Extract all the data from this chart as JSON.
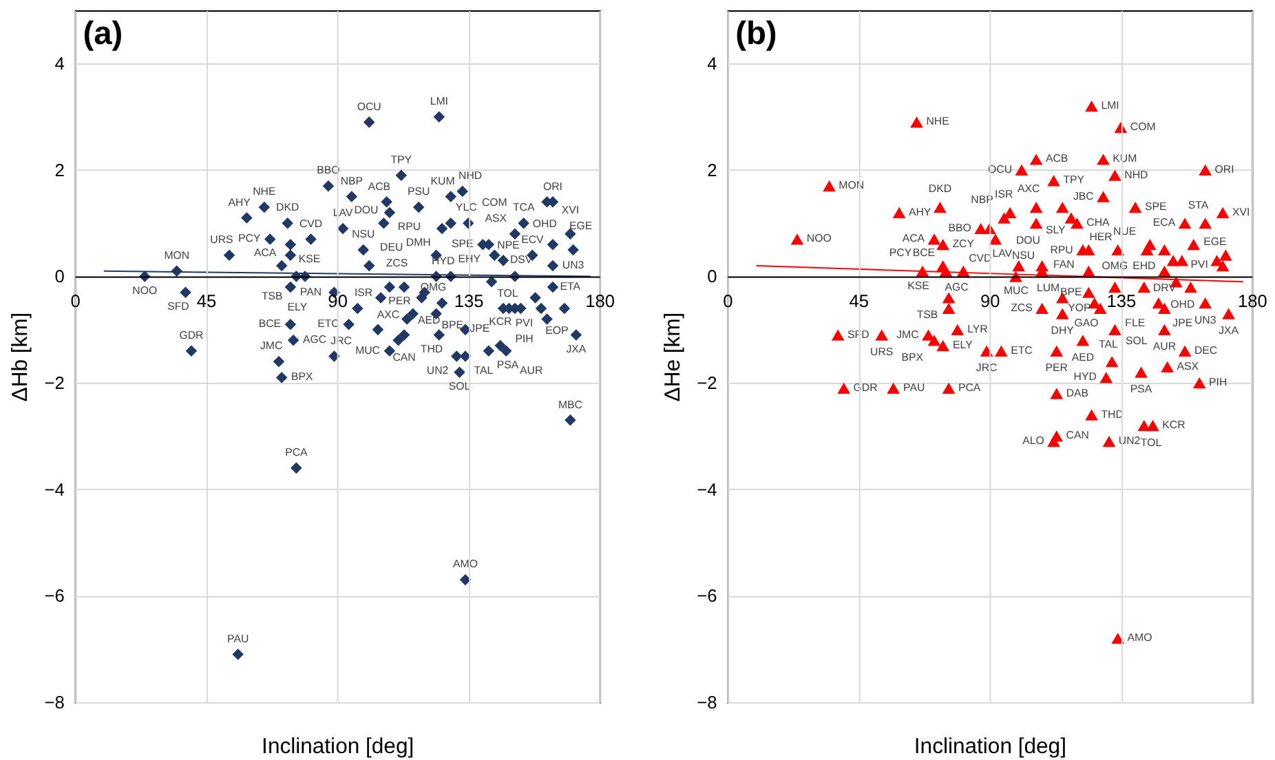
{
  "chart_data": [
    {
      "type": "scatter",
      "title": "(a)",
      "xlabel": "Inclination [deg]",
      "ylabel": "ΔHb [km]",
      "xlim": [
        0,
        180
      ],
      "ylim": [
        -8,
        5
      ],
      "xticks": [
        0,
        45,
        90,
        135,
        180
      ],
      "yticks": [
        -8,
        -6,
        -4,
        -2,
        0,
        2,
        4
      ],
      "grid": true,
      "series": [
        {
          "marker": "diamond",
          "color": "#1f3864",
          "x": [
            24,
            35,
            38,
            40,
            53,
            59,
            65,
            67,
            73,
            74,
            71,
            74,
            81,
            76,
            79,
            74,
            74,
            75,
            70,
            71,
            76,
            56,
            89,
            89,
            87,
            92,
            95,
            94,
            97,
            99,
            101,
            101,
            107,
            108,
            106,
            118,
            112,
            125,
            129,
            133,
            126,
            129,
            135,
            108,
            105,
            134,
            170,
            108,
            104,
            113,
            111,
            114,
            116,
            119,
            120,
            113,
            124,
            129,
            124,
            124,
            126,
            125,
            131,
            134,
            132,
            134,
            143,
            142,
            140,
            144,
            147,
            151,
            157,
            154,
            162,
            164,
            151,
            164,
            158,
            147,
            149,
            151,
            153,
            160,
            162,
            168,
            172,
            171,
            170,
            164,
            164,
            146,
            142,
            148
          ],
          "values": [
            0.0,
            0.1,
            -0.3,
            -1.4,
            0.4,
            1.1,
            1.3,
            0.7,
            1.0,
            0.6,
            0.2,
            0.4,
            0.7,
            0.0,
            0.0,
            -0.2,
            -0.9,
            -1.2,
            -1.6,
            -1.9,
            -3.6,
            -7.1,
            -0.3,
            -1.5,
            1.7,
            0.9,
            1.5,
            -0.9,
            -0.6,
            0.5,
            0.2,
            2.9,
            1.4,
            1.2,
            1.0,
            1.3,
            1.9,
            3.0,
            1.5,
            1.6,
            0.9,
            1.0,
            1.0,
            -0.2,
            -0.4,
            -5.7,
            -2.7,
            -1.4,
            -1.0,
            -1.1,
            -1.2,
            -0.8,
            -0.7,
            -0.4,
            -0.3,
            -0.2,
            0.0,
            0.0,
            0.4,
            -0.7,
            -0.5,
            -1.1,
            -1.5,
            -1.5,
            -1.8,
            -1.0,
            -0.1,
            0.6,
            0.6,
            0.4,
            0.3,
            0.8,
            0.4,
            1.0,
            1.4,
            1.4,
            0.0,
            -0.2,
            -0.4,
            -0.6,
            -0.6,
            -0.6,
            -0.6,
            -0.6,
            -0.8,
            -0.6,
            -1.1,
            0.5,
            0.8,
            0.6,
            0.2,
            -1.3,
            -1.4,
            -1.4
          ]
        },
        {
          "type": "line",
          "color": "#1f3864",
          "x": [
            10,
            177
          ],
          "values": [
            0.1,
            0.0
          ]
        }
      ],
      "annotations": [
        {
          "text": "NOO",
          "x": 24,
          "y": 0.0
        },
        {
          "text": "MON",
          "x": 35,
          "y": 0.1
        },
        {
          "text": "SFD",
          "x": 38,
          "y": -0.3
        },
        {
          "text": "GDR",
          "x": 40,
          "y": -1.4
        },
        {
          "text": "URS",
          "x": 53,
          "y": 0.4
        },
        {
          "text": "AHY",
          "x": 59,
          "y": 1.1
        },
        {
          "text": "NHE",
          "x": 65,
          "y": 1.3
        },
        {
          "text": "PCY",
          "x": 67,
          "y": 0.7
        },
        {
          "text": "DKD",
          "x": 73,
          "y": 1.0
        },
        {
          "text": "KSE",
          "x": 74,
          "y": 0.6
        },
        {
          "text": "ACA",
          "x": 71,
          "y": 0.2
        },
        {
          "text": "CVD",
          "x": 81,
          "y": 0.7
        },
        {
          "text": "TSB",
          "x": 76,
          "y": 0.0
        },
        {
          "text": "ELY",
          "x": 74,
          "y": -0.2
        },
        {
          "text": "BCE",
          "x": 74,
          "y": -0.9
        },
        {
          "text": "AGC",
          "x": 75,
          "y": -1.2
        },
        {
          "text": "JMC",
          "x": 70,
          "y": -1.6
        },
        {
          "text": "BPX",
          "x": 71,
          "y": -1.9
        },
        {
          "text": "PCA",
          "x": 76,
          "y": -3.6
        },
        {
          "text": "PAU",
          "x": 56,
          "y": -7.1
        },
        {
          "text": "PAN",
          "x": 89,
          "y": -0.3
        },
        {
          "text": "JRC",
          "x": 89,
          "y": -1.5
        },
        {
          "text": "BBO",
          "x": 87,
          "y": 1.7
        },
        {
          "text": "LAV",
          "x": 92,
          "y": 0.9
        },
        {
          "text": "NBP",
          "x": 95,
          "y": 1.5
        },
        {
          "text": "ETC",
          "x": 94,
          "y": -0.9
        },
        {
          "text": "ISR",
          "x": 97,
          "y": -0.6
        },
        {
          "text": "NSU",
          "x": 99,
          "y": 0.5
        },
        {
          "text": "DEU",
          "x": 101,
          "y": 0.2
        },
        {
          "text": "OCU",
          "x": 101,
          "y": 2.9
        },
        {
          "text": "ACB",
          "x": 107,
          "y": 1.4
        },
        {
          "text": "RPU",
          "x": 108,
          "y": 1.2
        },
        {
          "text": "DOU",
          "x": 106,
          "y": 1.0
        },
        {
          "text": "PSU",
          "x": 118,
          "y": 1.3
        },
        {
          "text": "TPY",
          "x": 112,
          "y": 1.9
        },
        {
          "text": "LMI",
          "x": 125,
          "y": 3.0
        },
        {
          "text": "KUM",
          "x": 129,
          "y": 1.5
        },
        {
          "text": "NHD",
          "x": 133,
          "y": 1.6
        },
        {
          "text": "YLC",
          "x": 126,
          "y": 0.9
        },
        {
          "text": "COM",
          "x": 135,
          "y": 1.0
        },
        {
          "text": "ZCS",
          "x": 108,
          "y": -0.2
        },
        {
          "text": "AXC",
          "x": 105,
          "y": -0.4
        },
        {
          "text": "AMO",
          "x": 134,
          "y": -5.7
        },
        {
          "text": "MBC",
          "x": 170,
          "y": -2.7
        },
        {
          "text": "MUC",
          "x": 108,
          "y": -1.4
        },
        {
          "text": "CAN",
          "x": 113,
          "y": -1.1
        },
        {
          "text": "PER",
          "x": 114,
          "y": -0.8
        },
        {
          "text": "AED",
          "x": 119,
          "y": -0.4
        },
        {
          "text": "HYD",
          "x": 129,
          "y": 0.0
        },
        {
          "text": "DMH",
          "x": 124,
          "y": 0.4
        },
        {
          "text": "BPE",
          "x": 124,
          "y": -0.7
        },
        {
          "text": "OMG",
          "x": 126,
          "y": -0.5
        },
        {
          "text": "THD",
          "x": 125,
          "y": -1.1
        },
        {
          "text": "UN2",
          "x": 131,
          "y": -1.5
        },
        {
          "text": "TAL",
          "x": 134,
          "y": -1.5
        },
        {
          "text": "SOL",
          "x": 132,
          "y": -1.8
        },
        {
          "text": "TOL",
          "x": 143,
          "y": -0.1
        },
        {
          "text": "EHY",
          "x": 142,
          "y": 0.6
        },
        {
          "text": "SPE",
          "x": 140,
          "y": 0.6
        },
        {
          "text": "NPE",
          "x": 144,
          "y": 0.4
        },
        {
          "text": "DSV",
          "x": 147,
          "y": 0.3
        },
        {
          "text": "ASX",
          "x": 151,
          "y": 0.8
        },
        {
          "text": "ECV",
          "x": 157,
          "y": 0.4
        },
        {
          "text": "TCA",
          "x": 154,
          "y": 1.0
        },
        {
          "text": "ORI",
          "x": 164,
          "y": 1.4
        },
        {
          "text": "ETA",
          "x": 164,
          "y": -0.2
        },
        {
          "text": "JPE",
          "x": 147,
          "y": -0.6
        },
        {
          "text": "PVI",
          "x": 160,
          "y": -0.6
        },
        {
          "text": "PIH",
          "x": 162,
          "y": -0.8
        },
        {
          "text": "EOP",
          "x": 168,
          "y": -0.6
        },
        {
          "text": "JXA",
          "x": 172,
          "y": -1.1
        },
        {
          "text": "EGE",
          "x": 171,
          "y": 0.5
        },
        {
          "text": "XVI",
          "x": 170,
          "y": 0.8
        },
        {
          "text": "OHD",
          "x": 164,
          "y": 0.6
        },
        {
          "text": "UN3",
          "x": 164,
          "y": 0.2
        },
        {
          "text": "KCR",
          "x": 146,
          "y": -1.3
        },
        {
          "text": "PSA",
          "x": 142,
          "y": -1.4
        },
        {
          "text": "AUR",
          "x": 148,
          "y": -1.4
        }
      ]
    },
    {
      "type": "scatter",
      "title": "(b)",
      "xlabel": "Inclination [deg]",
      "ylabel": "ΔHe [km]",
      "xlim": [
        0,
        180
      ],
      "ylim": [
        -8,
        5
      ],
      "xticks": [
        0,
        45,
        90,
        135,
        180
      ],
      "yticks": [
        -8,
        -6,
        -4,
        -2,
        0,
        2,
        4
      ],
      "grid": true,
      "series": [
        {
          "marker": "triangle",
          "color": "#ff0000",
          "x": [
            24,
            35,
            65,
            59,
            73,
            71,
            74,
            74,
            67,
            75,
            81,
            76,
            76,
            79,
            69,
            71,
            74,
            38,
            53,
            40,
            57,
            76,
            89,
            94,
            113,
            113,
            112,
            125,
            131,
            130,
            132,
            143,
            146,
            142,
            151,
            162,
            157,
            134,
            125,
            135,
            129,
            133,
            106,
            101,
            112,
            164,
            129,
            140,
            170,
            115,
            118,
            120,
            106,
            97,
            95,
            87,
            90,
            106,
            92,
            100,
            108,
            122,
            124,
            134,
            133,
            124,
            115,
            108,
            115,
            126,
            133,
            122,
            113,
            150,
            148,
            150,
            172,
            164,
            159,
            150,
            154,
            143,
            170,
            168,
            171,
            157,
            164,
            160,
            150,
            144,
            145,
            153,
            156,
            124,
            99,
            108,
            128
          ],
          "values": [
            0.7,
            1.7,
            2.9,
            1.2,
            1.3,
            0.7,
            0.6,
            0.2,
            0.1,
            0.1,
            0.1,
            -0.4,
            -0.6,
            -1.0,
            -1.1,
            -1.2,
            -1.3,
            -1.1,
            -1.1,
            -2.1,
            -2.1,
            -2.1,
            -1.4,
            -1.4,
            -2.2,
            -3.0,
            -3.1,
            -2.6,
            -3.1,
            -1.9,
            -1.6,
            -2.8,
            -2.8,
            -1.8,
            -1.7,
            -2.0,
            -1.4,
            -6.8,
            3.2,
            2.8,
            2.2,
            1.9,
            2.2,
            2.0,
            1.8,
            2.0,
            1.5,
            1.3,
            1.2,
            1.3,
            1.1,
            1.0,
            1.3,
            1.2,
            1.1,
            0.9,
            0.9,
            1.0,
            0.7,
            0.2,
            0.2,
            0.5,
            0.5,
            0.5,
            -0.2,
            -0.3,
            -0.4,
            -0.6,
            -0.7,
            -0.5,
            -1.0,
            -1.2,
            -1.4,
            -1.0,
            -0.5,
            -0.6,
            -0.7,
            -0.5,
            -0.2,
            0.1,
            -0.1,
            -0.2,
            0.2,
            0.3,
            0.4,
            1.0,
            1.0,
            0.6,
            0.5,
            0.5,
            0.6,
            0.3,
            0.3,
            0.1,
            0.0,
            0.1,
            -0.6
          ]
        },
        {
          "type": "line",
          "color": "#ff0000",
          "x": [
            10,
            177
          ],
          "values": [
            0.2,
            -0.1
          ]
        }
      ],
      "annotations": [
        {
          "text": "NOO",
          "x": 24,
          "y": 0.7
        },
        {
          "text": "MON",
          "x": 35,
          "y": 1.7
        },
        {
          "text": "NHE",
          "x": 65,
          "y": 2.9
        },
        {
          "text": "AHY",
          "x": 59,
          "y": 1.2
        },
        {
          "text": "DKD",
          "x": 73,
          "y": 1.3
        },
        {
          "text": "ACA",
          "x": 71,
          "y": 0.7
        },
        {
          "text": "ZCY",
          "x": 74,
          "y": 0.6
        },
        {
          "text": "KSE",
          "x": 74,
          "y": 0.2
        },
        {
          "text": "PCY",
          "x": 67,
          "y": 0.1
        },
        {
          "text": "BCE",
          "x": 75,
          "y": 0.1
        },
        {
          "text": "CVD",
          "x": 81,
          "y": 0.1
        },
        {
          "text": "TSB",
          "x": 76,
          "y": -0.4
        },
        {
          "text": "AGC",
          "x": 76,
          "y": -0.6
        },
        {
          "text": "LYR",
          "x": 79,
          "y": -1.0
        },
        {
          "text": "JMC",
          "x": 69,
          "y": -1.1
        },
        {
          "text": "BPX",
          "x": 71,
          "y": -1.2
        },
        {
          "text": "ELY",
          "x": 74,
          "y": -1.3
        },
        {
          "text": "SFD",
          "x": 38,
          "y": -1.1
        },
        {
          "text": "URS",
          "x": 53,
          "y": -1.1
        },
        {
          "text": "GDR",
          "x": 40,
          "y": -2.1
        },
        {
          "text": "PAU",
          "x": 57,
          "y": -2.1
        },
        {
          "text": "PCA",
          "x": 76,
          "y": -2.1
        },
        {
          "text": "JRC",
          "x": 89,
          "y": -1.4
        },
        {
          "text": "ETC",
          "x": 94,
          "y": -1.4
        },
        {
          "text": "DAB",
          "x": 113,
          "y": -2.2
        },
        {
          "text": "CAN",
          "x": 113,
          "y": -3.0
        },
        {
          "text": "ALO",
          "x": 112,
          "y": -3.1
        },
        {
          "text": "THD",
          "x": 125,
          "y": -2.6
        },
        {
          "text": "UN2",
          "x": 131,
          "y": -3.1
        },
        {
          "text": "HYD",
          "x": 130,
          "y": -1.9
        },
        {
          "text": "SOL",
          "x": 132,
          "y": -1.6
        },
        {
          "text": "TOL",
          "x": 143,
          "y": -2.8
        },
        {
          "text": "KCR",
          "x": 146,
          "y": -2.8
        },
        {
          "text": "PSA",
          "x": 142,
          "y": -1.8
        },
        {
          "text": "ASX",
          "x": 151,
          "y": -1.7
        },
        {
          "text": "PIH",
          "x": 162,
          "y": -2.0
        },
        {
          "text": "DEC",
          "x": 157,
          "y": -1.4
        },
        {
          "text": "AMO",
          "x": 134,
          "y": -6.8
        },
        {
          "text": "LMI",
          "x": 125,
          "y": 3.2
        },
        {
          "text": "COM",
          "x": 135,
          "y": 2.8
        },
        {
          "text": "KUM",
          "x": 129,
          "y": 2.2
        },
        {
          "text": "NHD",
          "x": 133,
          "y": 1.9
        },
        {
          "text": "ACB",
          "x": 106,
          "y": 2.2
        },
        {
          "text": "OCU",
          "x": 101,
          "y": 2.0
        },
        {
          "text": "TPY",
          "x": 112,
          "y": 1.8
        },
        {
          "text": "ORI",
          "x": 164,
          "y": 2.0
        },
        {
          "text": "JBC",
          "x": 129,
          "y": 1.5
        },
        {
          "text": "SPE",
          "x": 140,
          "y": 1.3
        },
        {
          "text": "XVI",
          "x": 170,
          "y": 1.2
        },
        {
          "text": "SLY",
          "x": 115,
          "y": 1.3
        },
        {
          "text": "CHA",
          "x": 120,
          "y": 1.0
        },
        {
          "text": "AXC",
          "x": 106,
          "y": 1.3
        },
        {
          "text": "ISR",
          "x": 97,
          "y": 1.2
        },
        {
          "text": "NBP",
          "x": 95,
          "y": 1.1
        },
        {
          "text": "BBO",
          "x": 87,
          "y": 0.9
        },
        {
          "text": "DOU",
          "x": 106,
          "y": 1.0
        },
        {
          "text": "LAV",
          "x": 92,
          "y": 0.7
        },
        {
          "text": "RPU",
          "x": 108,
          "y": 0.2
        },
        {
          "text": "FAN",
          "x": 122,
          "y": 0.5
        },
        {
          "text": "HER",
          "x": 134,
          "y": 0.5
        },
        {
          "text": "OMG",
          "x": 133,
          "y": -0.2
        },
        {
          "text": "BPE",
          "x": 124,
          "y": -0.3
        },
        {
          "text": "LUM",
          "x": 115,
          "y": -0.4
        },
        {
          "text": "ZCS",
          "x": 108,
          "y": -0.6
        },
        {
          "text": "DHY",
          "x": 115,
          "y": -0.7
        },
        {
          "text": "GAO",
          "x": 126,
          "y": -0.5
        },
        {
          "text": "TAL",
          "x": 133,
          "y": -1.0
        },
        {
          "text": "AED",
          "x": 122,
          "y": -1.2
        },
        {
          "text": "PER",
          "x": 113,
          "y": -1.4
        },
        {
          "text": "AUR",
          "x": 150,
          "y": -1.0
        },
        {
          "text": "FLE",
          "x": 148,
          "y": -0.5
        },
        {
          "text": "JPE",
          "x": 150,
          "y": -0.6
        },
        {
          "text": "JXA",
          "x": 172,
          "y": -0.7
        },
        {
          "text": "UN3",
          "x": 164,
          "y": -0.5
        },
        {
          "text": "OHD",
          "x": 159,
          "y": -0.2
        },
        {
          "text": "DRV",
          "x": 150,
          "y": 0.1
        },
        {
          "text": "EHD",
          "x": 143,
          "y": -0.2
        },
        {
          "text": "EGE",
          "x": 170,
          "y": 0.2
        },
        {
          "text": "ECA",
          "x": 157,
          "y": 1.0
        },
        {
          "text": "STA",
          "x": 164,
          "y": 1.0
        },
        {
          "text": "PVI",
          "x": 160,
          "y": 0.6
        },
        {
          "text": "NUE",
          "x": 144,
          "y": 0.5
        },
        {
          "text": "NSU",
          "x": 99,
          "y": 0.0
        },
        {
          "text": "MUC",
          "x": 108,
          "y": 0.1
        },
        {
          "text": "YOP",
          "x": 128,
          "y": -0.6
        }
      ]
    }
  ]
}
